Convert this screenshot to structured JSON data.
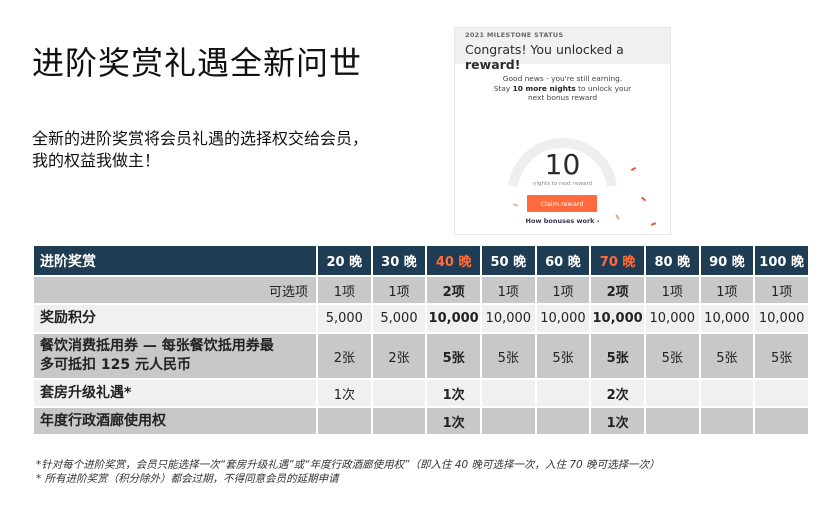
{
  "title": "进阶奖赏礼遇全新问世",
  "intro": {
    "line1": "全新的进阶奖赏将会员礼遇的选择权交给会员，",
    "line2": "我的权益我做主！"
  },
  "card": {
    "status": "2021 MILESTONE STATUS",
    "headline_prefix": "Congrats! You unlocked a ",
    "headline_bold": "reward!",
    "msg_line1": "Good news - you're still earning.",
    "msg_stay": "Stay ",
    "msg_bold": "10 more nights",
    "msg_rest": " to unlock your",
    "msg_line3": "next bonus reward",
    "big_number": "10",
    "nights_label": "nights to next reward",
    "claim_label": "Claim reward",
    "how_label": "How bonuses work ›"
  },
  "table": {
    "header": {
      "first": "进阶奖赏",
      "cols": [
        "20 晚",
        "30 晚",
        "40 晚",
        "50 晚",
        "60 晚",
        "70 晚",
        "80 晚",
        "90 晚",
        "100 晚"
      ]
    },
    "rows": {
      "options": {
        "label": "可选项",
        "values": [
          "1项",
          "1项",
          "2项",
          "1项",
          "1项",
          "2项",
          "1项",
          "1项",
          "1项"
        ]
      },
      "points": {
        "label": "奖励积分",
        "values": [
          "5,000",
          "5,000",
          "10,000",
          "10,000",
          "10,000",
          "10,000",
          "10,000",
          "10,000",
          "10,000"
        ]
      },
      "dining": {
        "label_line1": "餐饮消费抵用券 — 每张餐饮抵用券最",
        "label_line2": "多可抵扣 125 元人民币",
        "values": [
          "2张",
          "2张",
          "5张",
          "5张",
          "5张",
          "5张",
          "5张",
          "5张",
          "5张"
        ]
      },
      "upgrade": {
        "label": "套房升级礼遇*",
        "values": [
          "1次",
          "",
          "1次",
          "",
          "",
          "2次",
          "",
          "",
          ""
        ]
      },
      "lounge": {
        "label": "年度行政酒廊使用权",
        "values": [
          "",
          "",
          "1次",
          "",
          "",
          "1次",
          "",
          "",
          ""
        ]
      }
    }
  },
  "footnotes": {
    "line1": "*针对每个进阶奖赏，会员只能选择一次“套房升级礼遇”或“年度行政酒廊使用权”（即入住 40 晚可选择一次，入住 70 晚可选择一次）",
    "line2": "* 所有进阶奖赏（积分除外）都会过期，不得同意会员的延期申请"
  },
  "colors": {
    "header_bg": "#1f3c55",
    "highlight": "#ff6d3a",
    "accent_button": "#ff6b3c"
  }
}
